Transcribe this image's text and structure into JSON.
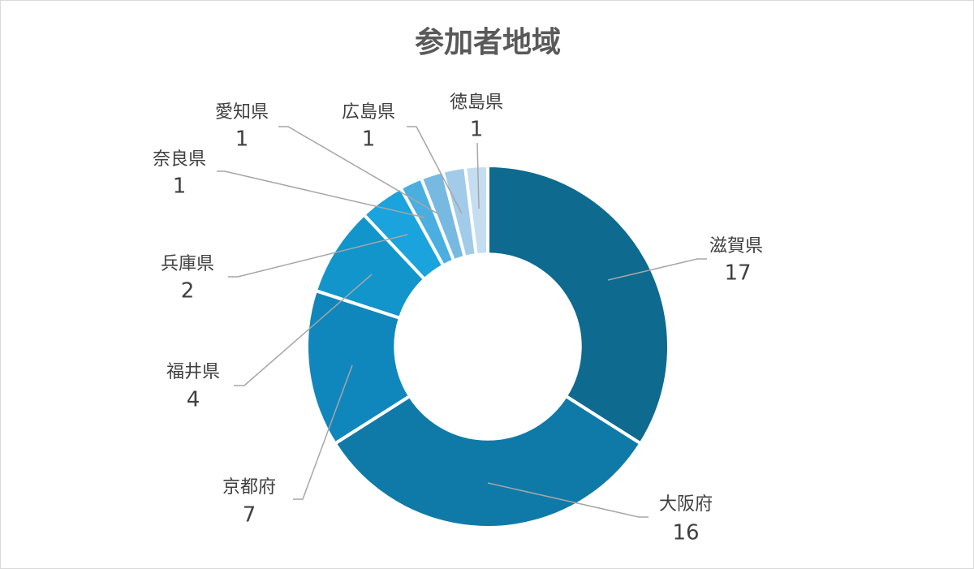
{
  "chart_data": {
    "type": "pie",
    "title": "参加者地域",
    "categories": [
      "滋賀県",
      "大阪府",
      "京都府",
      "福井県",
      "兵庫県",
      "奈良県",
      "愛知県",
      "広島県",
      "徳島県"
    ],
    "values": [
      17,
      16,
      7,
      4,
      2,
      1,
      1,
      1,
      1
    ],
    "data_labels": [
      "17",
      "16",
      "7",
      "4",
      "2",
      "1",
      "1",
      "1",
      "1"
    ],
    "colors": [
      "#0e6a8e",
      "#0f7aa8",
      "#1087bc",
      "#1195cb",
      "#1aa3dc",
      "#4aaee1",
      "#78b9e2",
      "#a1cbe8",
      "#c5ddf0"
    ],
    "hole_ratio": 0.51
  }
}
